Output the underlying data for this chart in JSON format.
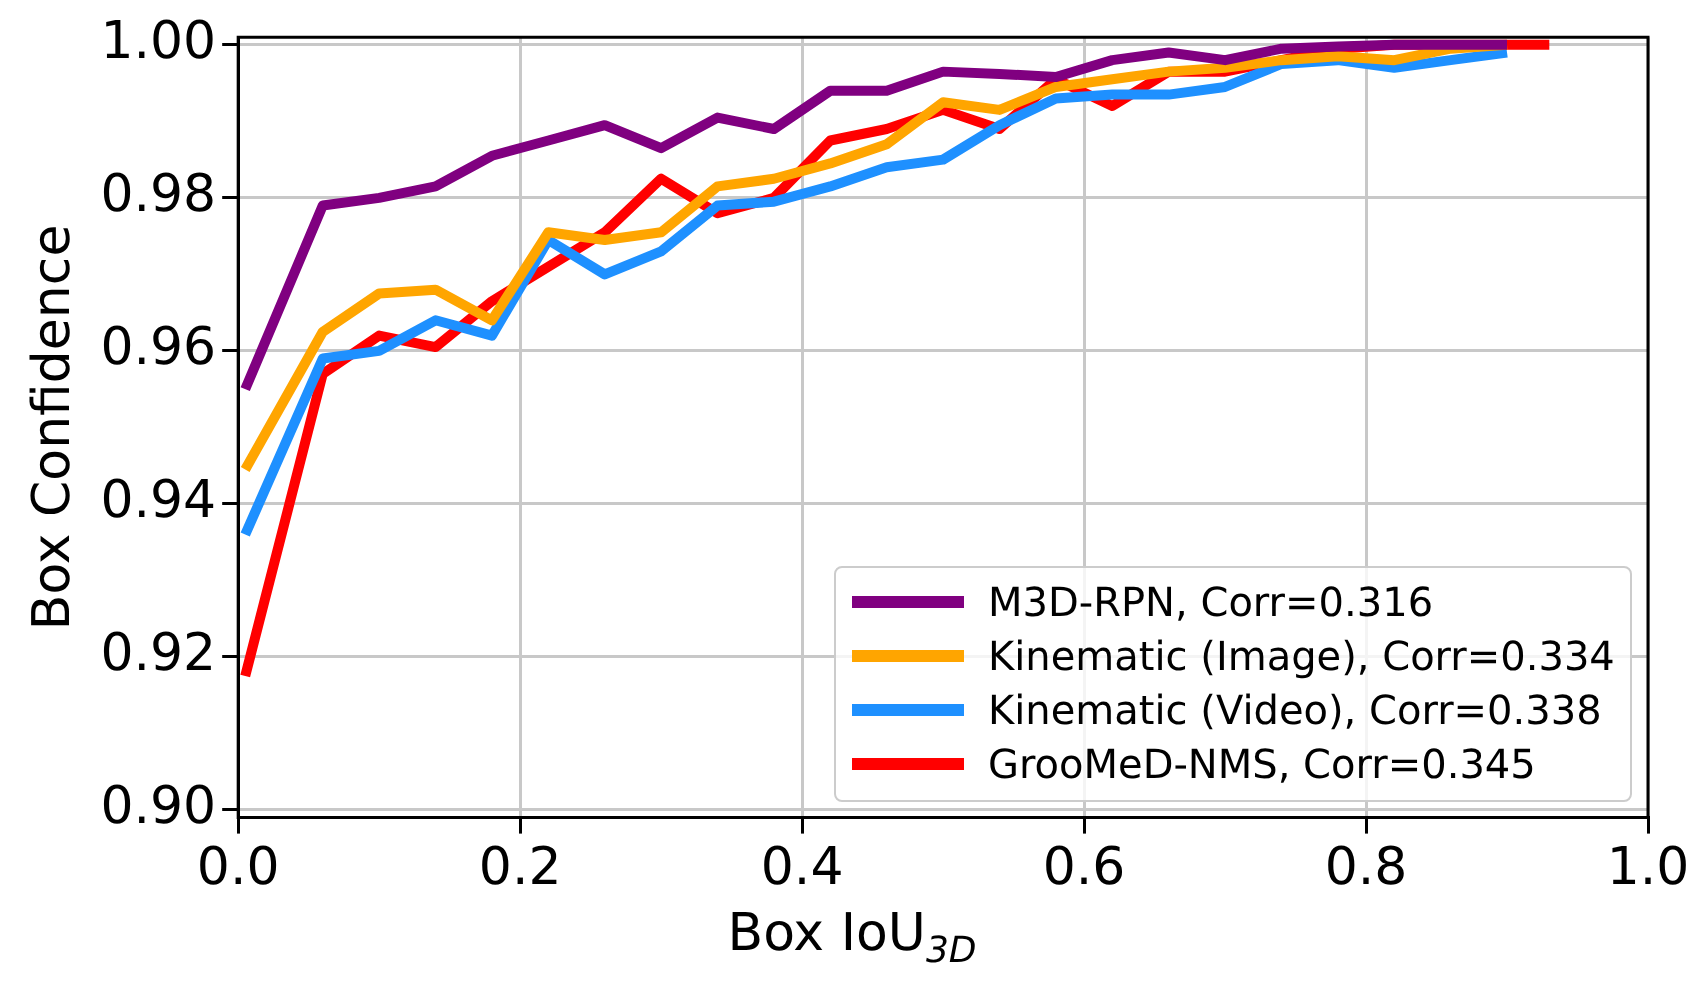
{
  "chart_data": {
    "type": "line",
    "xlabel": "Box IoU$_{3D}$",
    "ylabel": "Box Confidence",
    "x": [
      0.005,
      0.06,
      0.1,
      0.14,
      0.18,
      0.22,
      0.26,
      0.3,
      0.34,
      0.38,
      0.42,
      0.46,
      0.5,
      0.54,
      0.58,
      0.62,
      0.66,
      0.7,
      0.74,
      0.78,
      0.82,
      0.86,
      0.9
    ],
    "series": [
      {
        "name": "M3D-RPN, Corr=0.316",
        "color": "#800080",
        "values": [
          0.955,
          0.979,
          0.98,
          0.9815,
          0.9855,
          0.9875,
          0.9895,
          0.9865,
          0.9905,
          0.989,
          0.994,
          0.994,
          0.9965,
          0.9962,
          0.9958,
          0.998,
          0.999,
          0.998,
          0.9995,
          0.9998,
          1.0,
          1.0,
          1.0
        ]
      },
      {
        "name": "Kinematic (Image), Corr=0.334",
        "color": "#ffa500",
        "values": [
          0.9445,
          0.9625,
          0.9675,
          0.968,
          0.964,
          0.9755,
          0.9745,
          0.9755,
          0.9815,
          0.9825,
          0.9845,
          0.987,
          0.9925,
          0.9915,
          0.9945,
          0.9955,
          0.9965,
          0.997,
          0.998,
          0.9985,
          0.998,
          0.9995,
          1.0
        ]
      },
      {
        "name": "Kinematic (Video), Corr=0.338",
        "color": "#1e90ff",
        "values": [
          0.936,
          0.959,
          0.96,
          0.964,
          0.962,
          0.9745,
          0.97,
          0.973,
          0.979,
          0.9795,
          0.9815,
          0.984,
          0.985,
          0.9895,
          0.993,
          0.9935,
          0.9935,
          0.9945,
          0.9975,
          0.998,
          0.997,
          0.998,
          0.999
        ]
      },
      {
        "name": "GrooMeD-NMS, Corr=0.345",
        "color": "#ff0000",
        "x": [
          0.005,
          0.06,
          0.1,
          0.14,
          0.18,
          0.22,
          0.26,
          0.3,
          0.34,
          0.38,
          0.42,
          0.46,
          0.5,
          0.54,
          0.58,
          0.62,
          0.66,
          0.7,
          0.74,
          0.78,
          0.82,
          0.86,
          0.9,
          0.93
        ],
        "values": [
          0.9175,
          0.957,
          0.962,
          0.9605,
          0.9665,
          0.971,
          0.9755,
          0.9825,
          0.978,
          0.98,
          0.9875,
          0.989,
          0.9915,
          0.989,
          0.9955,
          0.992,
          0.9965,
          0.9965,
          0.998,
          0.9995,
          1.0,
          1.0,
          1.0,
          1.0
        ]
      }
    ],
    "xlim": [
      0,
      1
    ],
    "xticks": [
      {
        "value": 0,
        "label": "0.0"
      },
      {
        "value": 0.2,
        "label": "0.2"
      },
      {
        "value": 0.4,
        "label": "0.4"
      },
      {
        "value": 0.6,
        "label": "0.6"
      },
      {
        "value": 0.8,
        "label": "0.8"
      },
      {
        "value": 1,
        "label": "1.0"
      }
    ],
    "ylim": [
      0.899,
      1.001
    ],
    "yticks": [
      {
        "value": 0.9,
        "label": "0.90"
      },
      {
        "value": 0.92,
        "label": "0.92"
      },
      {
        "value": 0.94,
        "label": "0.94"
      },
      {
        "value": 0.96,
        "label": "0.96"
      },
      {
        "value": 0.98,
        "label": "0.98"
      },
      {
        "value": 1,
        "label": "1.00"
      }
    ],
    "grid": true,
    "legend": "bottom right",
    "marker": "none",
    "line_style": "solid"
  }
}
